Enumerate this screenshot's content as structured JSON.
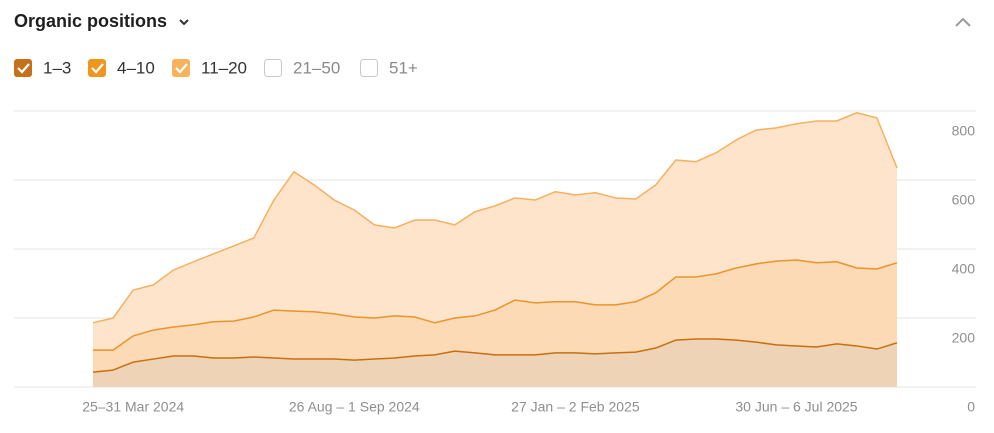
{
  "chart_data": {
    "type": "stacked-area",
    "title": "Organic positions",
    "categories": [
      null,
      null,
      "25–31 Mar 2024",
      null,
      null,
      null,
      null,
      null,
      null,
      null,
      null,
      null,
      null,
      "26 Aug – 1 Sep 2024",
      null,
      null,
      null,
      null,
      null,
      null,
      null,
      null,
      null,
      null,
      "27 Jan – 2 Feb 2025",
      null,
      null,
      null,
      null,
      null,
      null,
      null,
      null,
      null,
      null,
      "30 Jun – 6 Jul 2025",
      null,
      null,
      null,
      null,
      null
    ],
    "series": [
      {
        "name": "1–3",
        "checked": true,
        "color": "#c8700f",
        "fill_color": "#efd3b6",
        "box_color": "#c5701a",
        "values": [
          43,
          49,
          72,
          81,
          90,
          90,
          84,
          84,
          87,
          84,
          81,
          81,
          81,
          78,
          81,
          84,
          90,
          93,
          104,
          99,
          93,
          93,
          93,
          99,
          99,
          96,
          99,
          101,
          113,
          136,
          139,
          139,
          136,
          130,
          122,
          119,
          116,
          125,
          119,
          110,
          128
        ]
      },
      {
        "name": "4–10",
        "checked": true,
        "color": "#eb9429",
        "fill_color": "#fbdab5",
        "box_color": "#f0961f",
        "values": [
          64,
          58,
          76,
          84,
          84,
          90,
          105,
          107,
          116,
          139,
          139,
          137,
          131,
          125,
          119,
          122,
          113,
          93,
          96,
          107,
          130,
          159,
          151,
          148,
          148,
          142,
          139,
          146,
          160,
          183,
          180,
          189,
          209,
          227,
          243,
          249,
          244,
          238,
          226,
          232,
          232
        ]
      },
      {
        "name": "11–20",
        "checked": true,
        "color": "#f4b162",
        "fill_color": "#fde4ca",
        "box_color": "#f6b35c",
        "values": [
          79,
          93,
          133,
          131,
          165,
          183,
          197,
          218,
          229,
          319,
          404,
          368,
          330,
          310,
          270,
          255,
          281,
          298,
          270,
          302,
          302,
          296,
          298,
          319,
          310,
          325,
          310,
          298,
          313,
          339,
          334,
          351,
          371,
          388,
          386,
          395,
          411,
          408,
          450,
          438,
          275
        ]
      },
      {
        "name": "21–50",
        "checked": false
      },
      {
        "name": "51+",
        "checked": false
      }
    ],
    "ylim": [
      0,
      800
    ],
    "yticks": [
      0,
      200,
      400,
      600,
      800
    ],
    "grid": true
  }
}
